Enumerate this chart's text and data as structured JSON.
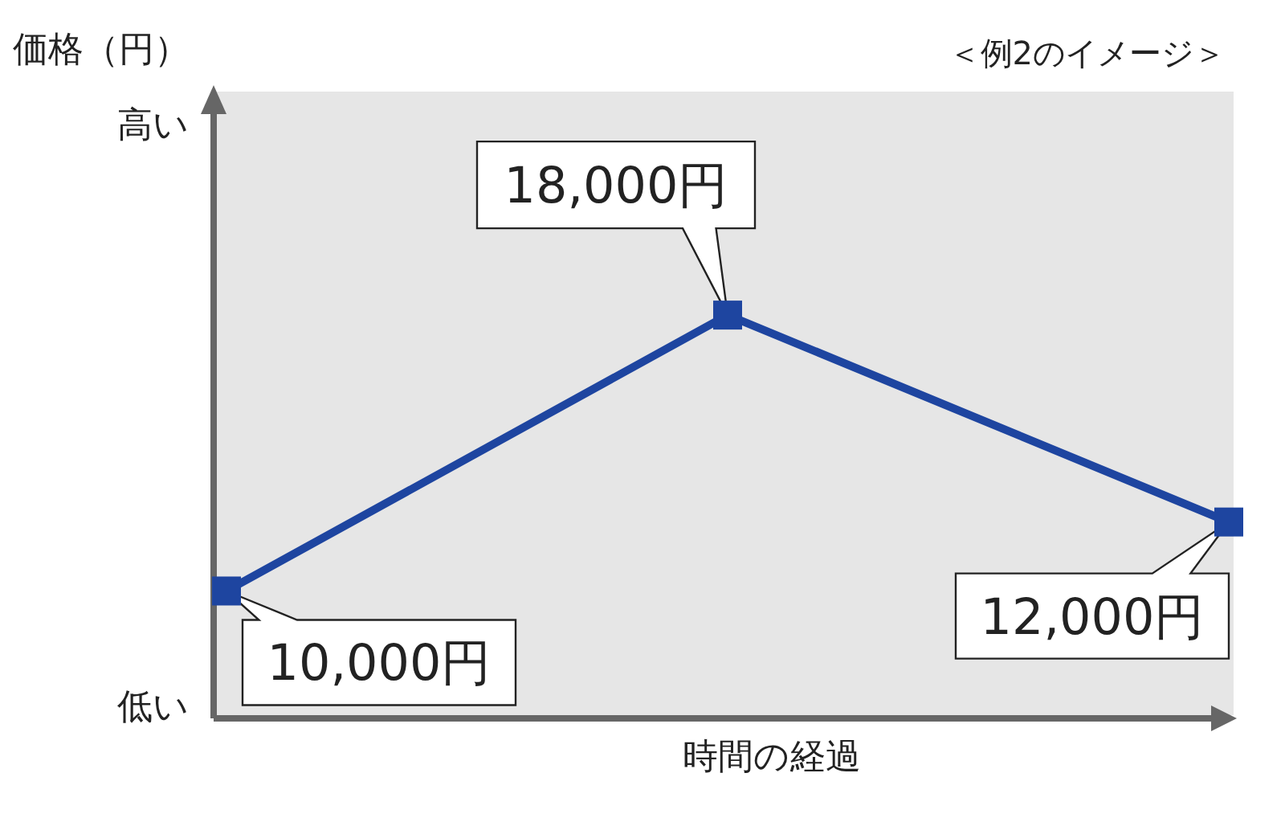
{
  "chart_data": {
    "type": "line",
    "subtitle": "＜例2のイメージ＞",
    "xlabel": "時間の経過",
    "categories": [
      null,
      null,
      null
    ],
    "series": [
      {
        "color": "#1e45a0",
        "values": [
          10000,
          18000,
          12000
        ],
        "value_labels": [
          "10,000円",
          "18,000円",
          "12,000円"
        ]
      }
    ],
    "annotations": [
      "価格（円）",
      "高い",
      "低い"
    ],
    "marker": "square",
    "line_style": "solid"
  }
}
